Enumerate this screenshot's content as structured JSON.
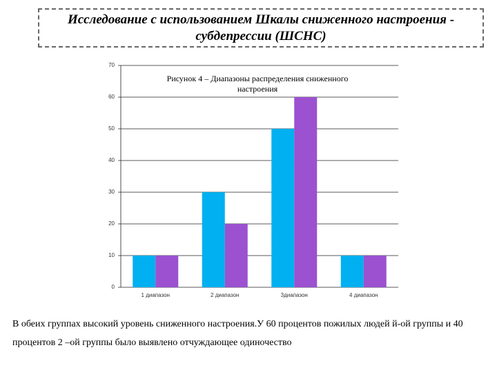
{
  "header": {
    "title": "Исследование с использованием Шкалы сниженного настроения - субдепрессии (ШСНС)"
  },
  "chart_data": {
    "type": "bar",
    "title": "Рисунок 4 – Диапазоны распределения сниженного настроения",
    "categories": [
      "1 диапазон",
      "2 диапазон",
      "3диапазон",
      "4 диапазон"
    ],
    "series": [
      {
        "color": "#00b0f0",
        "values": [
          10,
          30,
          50,
          10
        ]
      },
      {
        "color": "#9b51d0",
        "values": [
          10,
          20,
          60,
          10
        ]
      }
    ],
    "ylim": [
      0,
      70
    ],
    "yticks": [
      0,
      10,
      20,
      30,
      40,
      50,
      60,
      70
    ],
    "grid": true
  },
  "body": {
    "text": "В обеих группах высокий уровень сниженного настроения.У 60 процентов пожилых людей й-ой группы и 40 процентов 2 –ой группы было выявлено отчуждающее одиночество"
  }
}
